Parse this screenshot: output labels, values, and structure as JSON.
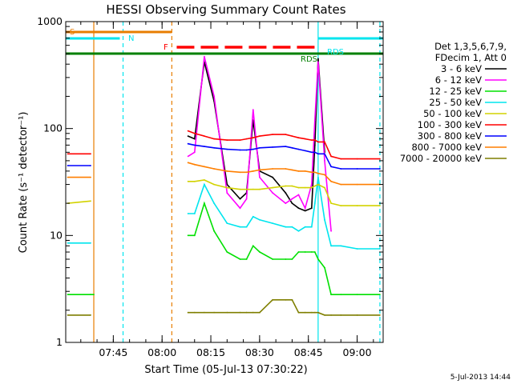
{
  "chart_data": {
    "type": "line",
    "title": "HESSI Observing Summary Count Rates",
    "xlabel": "Start Time (05-Jul-13 07:30:22)",
    "ylabel": "Count Rate (s⁻¹ detector⁻¹)",
    "y_scale": "log",
    "ylim": [
      1,
      1000
    ],
    "xlim": [
      "07:30:22",
      "09:08:00"
    ],
    "x_ticks": [
      "07:45",
      "08:00",
      "08:15",
      "08:30",
      "08:45",
      "09:00"
    ],
    "y_ticks": [
      "1",
      "10",
      "100",
      "1000"
    ],
    "legend_header": [
      "Det 1,3,5,6,7,9,",
      "FDecim 1, Att 0"
    ],
    "legend_position": "right",
    "timestamp": "5-Jul-2013 14:44",
    "flags": [
      {
        "label": "S",
        "start": "07:30:22",
        "end": "08:03:00",
        "color": "#e87d00"
      },
      {
        "label": "N",
        "start": "07:30:22",
        "end": "07:47:00",
        "color": "#00e5ee"
      },
      {
        "label": "F",
        "start": "08:04:30",
        "end": "08:48:00",
        "color": "#ff0000",
        "style": "dashed"
      },
      {
        "label": "RDS",
        "start": "07:30:22",
        "end": "09:08:00",
        "color": "#008000"
      },
      {
        "label": "RDS",
        "start": "08:48:00",
        "end": "09:08:00",
        "color": "#00e5ee"
      }
    ],
    "vlines": [
      {
        "time": "07:39:00",
        "color": "#e87d00",
        "style": "solid"
      },
      {
        "time": "07:48:00",
        "color": "#00e5ee",
        "style": "dashed"
      },
      {
        "time": "08:03:00",
        "color": "#e87d00",
        "style": "dashed"
      },
      {
        "time": "08:48:00",
        "color": "#00e5ee",
        "style": "solid"
      },
      {
        "time": "09:07:00",
        "color": "#00e5ee",
        "style": "dashed"
      }
    ],
    "x": [
      "07:31",
      "07:38",
      "07:39",
      "08:04",
      "08:08",
      "08:10",
      "08:13",
      "08:16",
      "08:20",
      "08:24",
      "08:26",
      "08:28",
      "08:30",
      "08:34",
      "08:38",
      "08:40",
      "08:42",
      "08:44",
      "08:46",
      "08:47",
      "08:48",
      "08:50",
      "08:52",
      "08:55",
      "09:00",
      "09:07"
    ],
    "series": [
      {
        "name": "3 - 6 keV",
        "color": "#000000",
        "values": [
          null,
          null,
          null,
          null,
          85,
          80,
          420,
          180,
          30,
          22,
          25,
          120,
          40,
          35,
          25,
          20,
          18,
          17,
          18,
          70,
          450,
          60,
          null,
          null,
          null,
          null
        ]
      },
      {
        "name": "6 - 12 keV",
        "color": "#ff00ff",
        "values": [
          null,
          null,
          null,
          null,
          55,
          60,
          470,
          200,
          25,
          18,
          22,
          150,
          35,
          25,
          20,
          22,
          24,
          18,
          30,
          120,
          420,
          50,
          11,
          null,
          null,
          null
        ]
      },
      {
        "name": "12 - 25 keV",
        "color": "#00e000",
        "values": [
          2.8,
          2.8,
          2.8,
          null,
          10,
          10,
          20,
          11,
          7,
          6,
          6,
          8,
          7,
          6,
          6,
          6,
          7,
          7,
          7,
          7,
          6,
          5,
          2.8,
          2.8,
          2.8,
          2.8
        ]
      },
      {
        "name": "25 - 50 keV",
        "color": "#00e5ee",
        "values": [
          8.5,
          8.5,
          null,
          null,
          16,
          16,
          30,
          20,
          13,
          12,
          12,
          15,
          14,
          13,
          12,
          12,
          11,
          12,
          12,
          20,
          35,
          14,
          8,
          8,
          7.5,
          7.5
        ]
      },
      {
        "name": "50 - 100 keV",
        "color": "#d2d200",
        "values": [
          20,
          21,
          null,
          null,
          32,
          32,
          33,
          30,
          28,
          27,
          27,
          27,
          27,
          28,
          29,
          29,
          28,
          28,
          28,
          29,
          30,
          28,
          20,
          19,
          19,
          19
        ]
      },
      {
        "name": "100 - 300 keV",
        "color": "#ff0000",
        "values": [
          58,
          58,
          null,
          null,
          95,
          90,
          85,
          80,
          78,
          78,
          80,
          82,
          85,
          88,
          88,
          85,
          82,
          80,
          78,
          78,
          75,
          75,
          55,
          52,
          52,
          52
        ]
      },
      {
        "name": "300 - 800 keV",
        "color": "#0000ff",
        "values": [
          45,
          45,
          null,
          null,
          72,
          70,
          68,
          66,
          64,
          63,
          63,
          64,
          66,
          67,
          68,
          66,
          64,
          62,
          60,
          60,
          58,
          58,
          44,
          42,
          42,
          42
        ]
      },
      {
        "name": "800 - 7000 keV",
        "color": "#ff7f00",
        "values": [
          35,
          35,
          null,
          null,
          48,
          46,
          44,
          42,
          40,
          39,
          39,
          40,
          41,
          42,
          42,
          41,
          40,
          40,
          39,
          39,
          38,
          37,
          32,
          30,
          30,
          30
        ]
      },
      {
        "name": "7000 - 20000 keV",
        "color": "#7f7f00",
        "values": [
          1.8,
          1.8,
          null,
          null,
          1.9,
          1.9,
          1.9,
          1.9,
          1.9,
          1.9,
          1.9,
          1.9,
          1.9,
          2.5,
          2.5,
          2.5,
          1.9,
          1.9,
          1.9,
          1.9,
          1.9,
          1.8,
          1.8,
          1.8,
          1.8,
          1.8
        ]
      }
    ]
  }
}
